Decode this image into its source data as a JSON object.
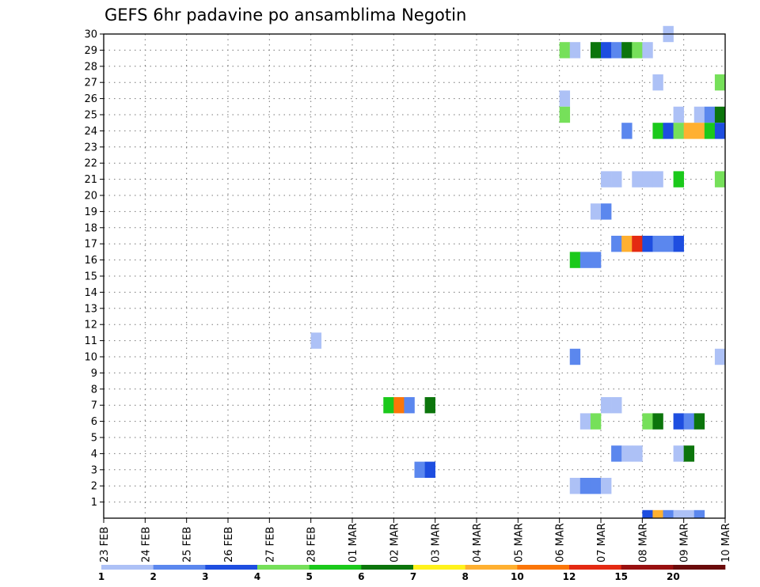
{
  "chart_data": {
    "type": "heatmap",
    "title": "GEFS 6hr padavine po ansamblima Negotin",
    "xlabel": "",
    "ylabel": "",
    "x_tick_labels": [
      "23 FEB",
      "24 FEB",
      "25 FEB",
      "26 FEB",
      "27 FEB",
      "28 FEB",
      "01 MAR",
      "02 MAR",
      "03 MAR",
      "04 MAR",
      "05 MAR",
      "06 MAR",
      "07 MAR",
      "08 MAR",
      "09 MAR",
      "10 MAR"
    ],
    "x_unit": "6-hour step (4 steps per day) from 23 FEB 00Z",
    "xlim": [
      0,
      60
    ],
    "y_tick_labels": [
      "1",
      "2",
      "3",
      "4",
      "5",
      "6",
      "7",
      "8",
      "9",
      "10",
      "11",
      "12",
      "13",
      "14",
      "15",
      "16",
      "17",
      "18",
      "19",
      "20",
      "21",
      "22",
      "23",
      "24",
      "25",
      "26",
      "27",
      "28",
      "29",
      "30"
    ],
    "ylim": [
      0,
      30
    ],
    "grid": true,
    "colorbar": {
      "position": "bottom",
      "colors": [
        "#adc1f6",
        "#5b87ee",
        "#1e4ee0",
        "#76e05a",
        "#1bc91b",
        "#0c750c",
        "#fff21c",
        "#ffb030",
        "#fb7608",
        "#e42a12",
        "#991010",
        "#6b0b0b"
      ],
      "labels": [
        "1",
        "2",
        "3",
        "4",
        "5",
        "6",
        "7",
        "8",
        "10",
        "12",
        "15",
        "20"
      ]
    },
    "cells": [
      {
        "member": 30,
        "step": 54,
        "cat": 1
      },
      {
        "member": 29,
        "step": 44,
        "cat": 4
      },
      {
        "member": 29,
        "step": 45,
        "cat": 1
      },
      {
        "member": 29,
        "step": 47,
        "cat": 6
      },
      {
        "member": 29,
        "step": 48,
        "cat": 3
      },
      {
        "member": 29,
        "step": 49,
        "cat": 2
      },
      {
        "member": 29,
        "step": 50,
        "cat": 6
      },
      {
        "member": 29,
        "step": 51,
        "cat": 4
      },
      {
        "member": 29,
        "step": 52,
        "cat": 1
      },
      {
        "member": 27,
        "step": 53,
        "cat": 1
      },
      {
        "member": 27,
        "step": 59,
        "cat": 4
      },
      {
        "member": 26,
        "step": 44,
        "cat": 1
      },
      {
        "member": 25,
        "step": 44,
        "cat": 4
      },
      {
        "member": 25,
        "step": 55,
        "cat": 1
      },
      {
        "member": 25,
        "step": 57,
        "cat": 1
      },
      {
        "member": 25,
        "step": 58,
        "cat": 2
      },
      {
        "member": 25,
        "step": 59,
        "cat": 6
      },
      {
        "member": 24,
        "step": 50,
        "cat": 2
      },
      {
        "member": 24,
        "step": 53,
        "cat": 5
      },
      {
        "member": 24,
        "step": 54,
        "cat": 3
      },
      {
        "member": 24,
        "step": 55,
        "cat": 4
      },
      {
        "member": 24,
        "step": 56,
        "cat": 8
      },
      {
        "member": 24,
        "step": 57,
        "cat": 8
      },
      {
        "member": 24,
        "step": 58,
        "cat": 5
      },
      {
        "member": 24,
        "step": 59,
        "cat": 3
      },
      {
        "member": 21,
        "step": 48,
        "cat": 1
      },
      {
        "member": 21,
        "step": 49,
        "cat": 1
      },
      {
        "member": 21,
        "step": 51,
        "cat": 1
      },
      {
        "member": 21,
        "step": 52,
        "cat": 1
      },
      {
        "member": 21,
        "step": 53,
        "cat": 1
      },
      {
        "member": 21,
        "step": 55,
        "cat": 5
      },
      {
        "member": 21,
        "step": 59,
        "cat": 4
      },
      {
        "member": 19,
        "step": 47,
        "cat": 1
      },
      {
        "member": 19,
        "step": 48,
        "cat": 2
      },
      {
        "member": 17,
        "step": 49,
        "cat": 2
      },
      {
        "member": 17,
        "step": 50,
        "cat": 8
      },
      {
        "member": 17,
        "step": 51,
        "cat": 10
      },
      {
        "member": 17,
        "step": 52,
        "cat": 3
      },
      {
        "member": 17,
        "step": 53,
        "cat": 2
      },
      {
        "member": 17,
        "step": 54,
        "cat": 2
      },
      {
        "member": 17,
        "step": 55,
        "cat": 3
      },
      {
        "member": 16,
        "step": 45,
        "cat": 5
      },
      {
        "member": 16,
        "step": 46,
        "cat": 2
      },
      {
        "member": 16,
        "step": 47,
        "cat": 2
      },
      {
        "member": 11,
        "step": 20,
        "cat": 1
      },
      {
        "member": 10,
        "step": 45,
        "cat": 2
      },
      {
        "member": 10,
        "step": 59,
        "cat": 1
      },
      {
        "member": 7,
        "step": 27,
        "cat": 5
      },
      {
        "member": 7,
        "step": 28,
        "cat": 9
      },
      {
        "member": 7,
        "step": 29,
        "cat": 2
      },
      {
        "member": 7,
        "step": 31,
        "cat": 6
      },
      {
        "member": 7,
        "step": 48,
        "cat": 1
      },
      {
        "member": 7,
        "step": 49,
        "cat": 1
      },
      {
        "member": 6,
        "step": 46,
        "cat": 1
      },
      {
        "member": 6,
        "step": 47,
        "cat": 4
      },
      {
        "member": 6,
        "step": 52,
        "cat": 4
      },
      {
        "member": 6,
        "step": 53,
        "cat": 6
      },
      {
        "member": 6,
        "step": 55,
        "cat": 3
      },
      {
        "member": 6,
        "step": 56,
        "cat": 2
      },
      {
        "member": 6,
        "step": 57,
        "cat": 6
      },
      {
        "member": 4,
        "step": 49,
        "cat": 2
      },
      {
        "member": 4,
        "step": 50,
        "cat": 1
      },
      {
        "member": 4,
        "step": 51,
        "cat": 1
      },
      {
        "member": 4,
        "step": 55,
        "cat": 1
      },
      {
        "member": 4,
        "step": 56,
        "cat": 6
      },
      {
        "member": 3,
        "step": 30,
        "cat": 2
      },
      {
        "member": 3,
        "step": 31,
        "cat": 3
      },
      {
        "member": 2,
        "step": 45,
        "cat": 1
      },
      {
        "member": 2,
        "step": 46,
        "cat": 2
      },
      {
        "member": 2,
        "step": 47,
        "cat": 2
      },
      {
        "member": 2,
        "step": 48,
        "cat": 1
      },
      {
        "member": 0,
        "step": 52,
        "cat": 3
      },
      {
        "member": 0,
        "step": 53,
        "cat": 8
      },
      {
        "member": 0,
        "step": 54,
        "cat": 2
      },
      {
        "member": 0,
        "step": 55,
        "cat": 1
      },
      {
        "member": 0,
        "step": 56,
        "cat": 1
      },
      {
        "member": 0,
        "step": 57,
        "cat": 2
      }
    ]
  }
}
